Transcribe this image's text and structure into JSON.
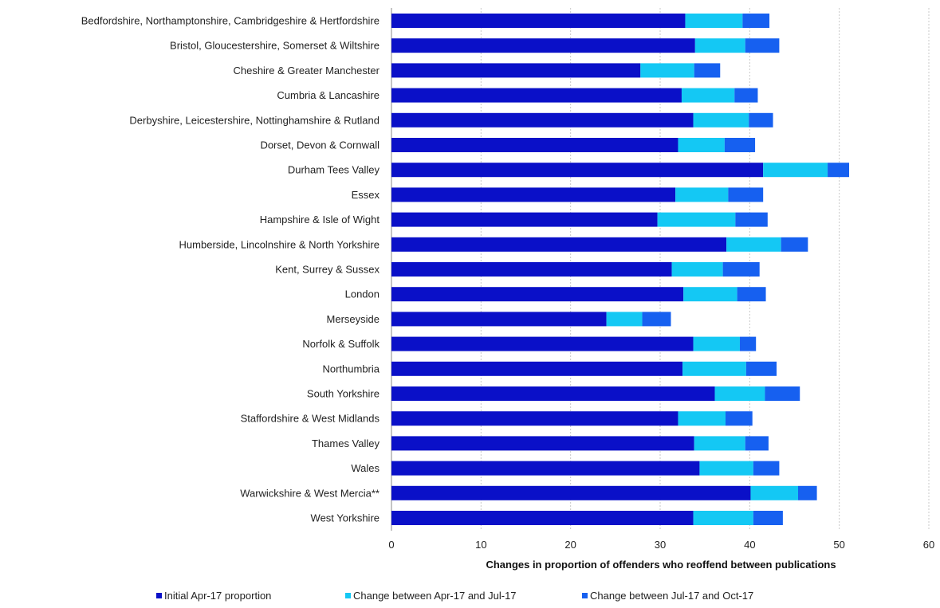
{
  "chart_data": {
    "type": "bar",
    "orientation": "horizontal",
    "stacked": true,
    "title": "",
    "xlabel": "Changes in proportion of offenders who reoffend between publications",
    "ylabel": "",
    "xlim": [
      0,
      60
    ],
    "x_ticks": [
      "0",
      "10",
      "20",
      "30",
      "40",
      "50",
      "60"
    ],
    "grid": "vertical-dashed",
    "legend_position": "bottom",
    "categories": [
      "Bedfordshire, Northamptonshire, Cambridgeshire & Hertfordshire",
      "Bristol, Gloucestershire, Somerset & Wiltshire",
      "Cheshire & Greater Manchester",
      "Cumbria & Lancashire",
      "Derbyshire, Leicestershire, Nottinghamshire & Rutland",
      "Dorset, Devon & Cornwall",
      "Durham Tees Valley",
      "Essex",
      "Hampshire & Isle of Wight",
      "Humberside, Lincolnshire & North Yorkshire",
      "Kent, Surrey & Sussex",
      "London",
      "Merseyside",
      "Norfolk & Suffolk",
      "Northumbria",
      "South Yorkshire",
      "Staffordshire & West Midlands",
      "Thames Valley",
      "Wales",
      "Warwickshire & West Mercia**",
      "West Yorkshire"
    ],
    "series": [
      {
        "name": "Initial Apr-17 proportion",
        "color": "#0a10c8",
        "values": [
          32.8,
          33.9,
          27.8,
          32.4,
          33.7,
          32.0,
          41.5,
          31.7,
          29.7,
          37.4,
          31.3,
          32.6,
          24.0,
          33.7,
          32.5,
          36.1,
          32.0,
          33.8,
          34.4,
          40.1,
          33.7
        ]
      },
      {
        "name": "Change between Apr-17 and Jul-17",
        "color": "#14c8f4",
        "values": [
          6.4,
          5.6,
          6.0,
          5.9,
          6.2,
          5.2,
          7.2,
          5.9,
          8.7,
          6.1,
          5.7,
          6.0,
          4.0,
          5.2,
          7.1,
          5.6,
          5.3,
          5.7,
          6.0,
          5.3,
          6.7
        ]
      },
      {
        "name": "Change between Jul-17 and Oct-17",
        "color": "#1660f0",
        "values": [
          3.0,
          3.8,
          2.9,
          2.6,
          2.7,
          3.4,
          2.4,
          3.9,
          3.6,
          3.0,
          4.1,
          3.2,
          3.2,
          1.8,
          3.4,
          3.9,
          3.0,
          2.6,
          2.9,
          2.1,
          3.3
        ]
      }
    ]
  }
}
